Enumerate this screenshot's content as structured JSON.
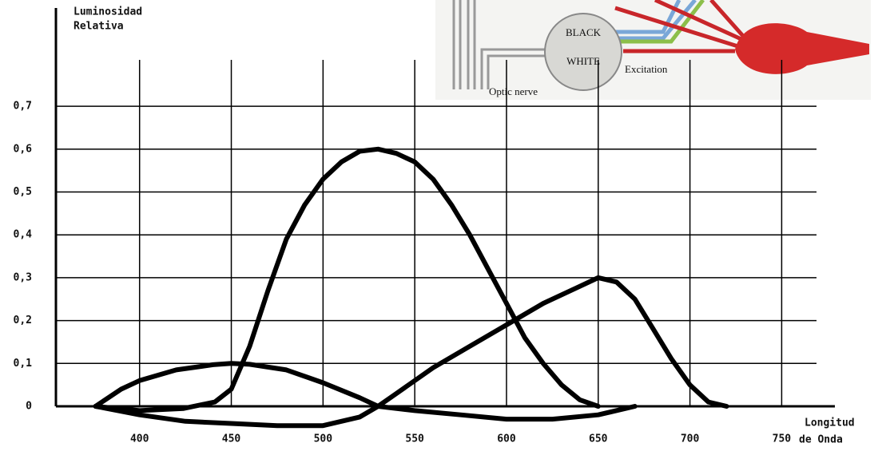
{
  "chart_data": {
    "type": "line",
    "y_label": [
      "Luminosidad",
      "Relativa"
    ],
    "x_label": [
      "Longitud",
      "de Onda"
    ],
    "xlim": [
      354.4,
      779
    ],
    "ylim": [
      0,
      0.92
    ],
    "xticks": [
      400,
      450,
      500,
      550,
      600,
      650,
      700,
      750
    ],
    "yticks": [
      0,
      {
        "value": 0.1,
        "label": "0,1"
      },
      {
        "value": 0.2,
        "label": "0,2"
      },
      {
        "value": 0.3,
        "label": "0,3"
      },
      {
        "value": 0.4,
        "label": "0,4"
      },
      {
        "value": 0.5,
        "label": "0,5"
      },
      {
        "value": 0.6,
        "label": "0,6"
      },
      {
        "value": 0.7,
        "label": "0,7"
      }
    ],
    "grid": true,
    "series": [
      {
        "color": "#000000",
        "x": [
          376,
          400,
          424,
          441,
          450,
          460,
          470,
          480,
          490,
          500,
          510,
          520,
          530,
          540,
          550,
          560,
          570,
          580,
          590,
          600,
          610,
          620,
          630,
          640,
          650
        ],
        "values": [
          0,
          -0.01,
          -0.005,
          0.01,
          0.04,
          0.14,
          0.27,
          0.39,
          0.47,
          0.53,
          0.57,
          0.595,
          0.6,
          0.59,
          0.57,
          0.53,
          0.47,
          0.4,
          0.32,
          0.24,
          0.16,
          0.1,
          0.05,
          0.015,
          0
        ]
      },
      {
        "color": "#000000",
        "x": [
          376,
          400,
          425,
          450,
          475,
          500,
          520,
          530,
          540,
          560,
          580,
          600,
          620,
          640,
          650,
          660,
          670,
          680,
          690,
          700,
          710,
          720
        ],
        "values": [
          0,
          -0.02,
          -0.035,
          -0.04,
          -0.045,
          -0.045,
          -0.025,
          0,
          0.03,
          0.09,
          0.14,
          0.19,
          0.24,
          0.28,
          0.3,
          0.29,
          0.25,
          0.18,
          0.11,
          0.05,
          0.01,
          0
        ]
      },
      {
        "color": "#000000",
        "x": [
          376,
          390,
          400,
          420,
          440,
          450,
          460,
          480,
          500,
          520,
          530,
          550,
          575,
          600,
          625,
          650,
          670
        ],
        "values": [
          0,
          0.04,
          0.06,
          0.085,
          0.097,
          0.1,
          0.098,
          0.085,
          0.055,
          0.02,
          0,
          -0.01,
          -0.02,
          -0.03,
          -0.03,
          -0.02,
          0
        ]
      }
    ]
  },
  "inset": {
    "labels": [
      "BLACK",
      "WHITE",
      "Optic nerve",
      "Excitation"
    ]
  }
}
